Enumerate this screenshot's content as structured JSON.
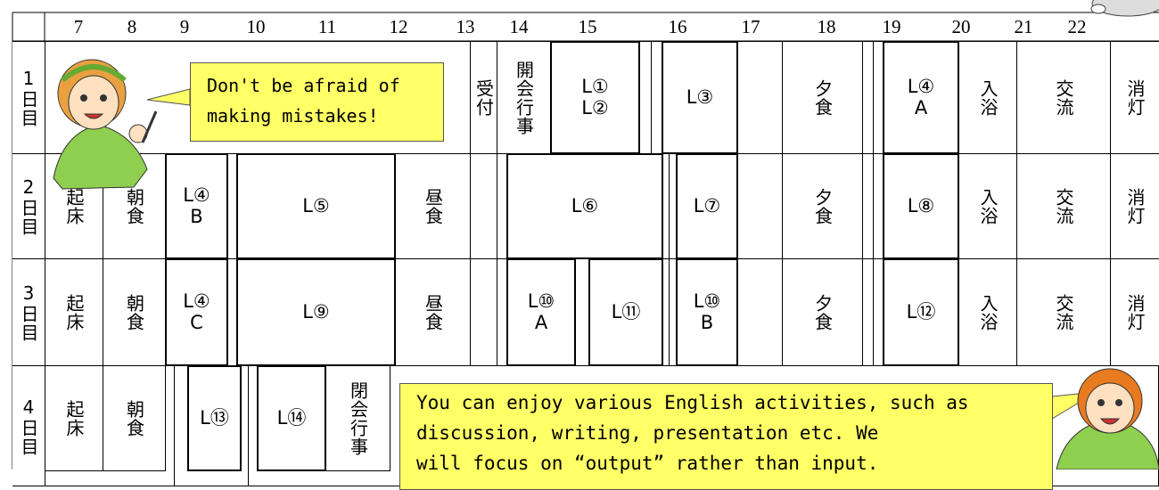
{
  "header": {
    "hours": [
      7,
      8,
      9,
      10,
      11,
      12,
      13,
      14,
      15,
      16,
      17,
      18,
      19,
      20,
      21,
      22
    ]
  },
  "rows": [
    {
      "label": "1日目",
      "cells": [
        [
          "受付"
        ],
        [
          "開会行事"
        ],
        [
          "L①",
          "L②"
        ],
        [
          "L③"
        ],
        [
          "夕食"
        ],
        [
          "L④",
          "A"
        ],
        [
          "入浴"
        ],
        [
          "交流"
        ],
        [
          "消灯"
        ]
      ]
    },
    {
      "label": "2日目",
      "cells": [
        [
          "起床"
        ],
        [
          "朝食"
        ],
        [
          "L④",
          "B"
        ],
        [
          "L⑤"
        ],
        [
          "昼食"
        ],
        [
          "L⑥"
        ],
        [
          "L⑦"
        ],
        [
          "夕食"
        ],
        [
          "L⑧"
        ],
        [
          "入浴"
        ],
        [
          "交流"
        ],
        [
          "消灯"
        ]
      ]
    },
    {
      "label": "3日目",
      "cells": [
        [
          "起床"
        ],
        [
          "朝食"
        ],
        [
          "L④",
          "C"
        ],
        [
          "L⑨"
        ],
        [
          "昼食"
        ],
        [
          "L⑩",
          "A"
        ],
        [
          "L⑪"
        ],
        [
          "L⑩",
          "B"
        ],
        [
          "夕食"
        ],
        [
          "L⑫"
        ],
        [
          "入浴"
        ],
        [
          "交流"
        ],
        [
          "消灯"
        ]
      ]
    },
    {
      "label": "4日目",
      "cells": [
        [
          "起床"
        ],
        [
          "朝食"
        ],
        [
          "L⑬"
        ],
        [
          "L⑭"
        ],
        [
          "閉会行事"
        ]
      ]
    }
  ],
  "bubbles": [
    {
      "lines": [
        "Don't be afraid of",
        "making mistakes!"
      ]
    },
    {
      "lines": [
        "You can enjoy various English activities, such as",
        "discussion, writing, presentation etc.   We",
        "will focus on “output” rather than input."
      ]
    }
  ]
}
